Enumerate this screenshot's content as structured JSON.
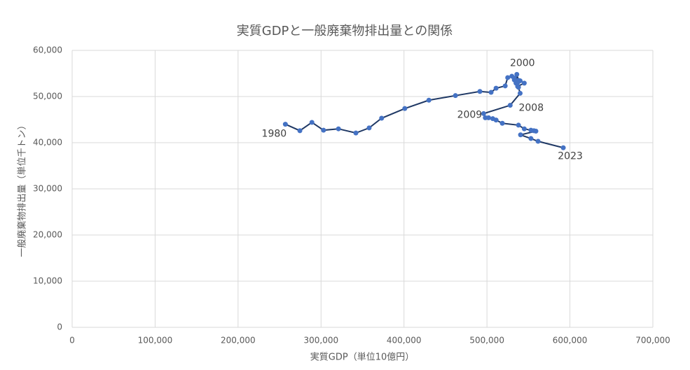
{
  "chart_data": {
    "type": "scatter-line",
    "title": "実質GDPと一般廃棄物排出量との関係",
    "x_label": "実質GDP（単位10億円）",
    "y_label": "一般廃棄物排出量（単位千トン）",
    "color": "#4472c4",
    "line_color": "#1f3864",
    "grid": true,
    "xlim": [
      0,
      700000
    ],
    "ylim": [
      0,
      60000
    ],
    "xticks": [
      0,
      {
        "value": 100000,
        "label": "100,000"
      },
      {
        "value": 200000,
        "label": "200,000"
      },
      {
        "value": 300000,
        "label": "300,000"
      },
      {
        "value": 400000,
        "label": "400,000"
      },
      {
        "value": 500000,
        "label": "500,000"
      },
      {
        "value": 600000,
        "label": "600,000"
      },
      {
        "value": 700000,
        "label": "700,000"
      }
    ],
    "yticks": [
      0,
      {
        "value": 10000,
        "label": "10,000"
      },
      {
        "value": 20000,
        "label": "20,000"
      },
      {
        "value": 30000,
        "label": "30,000"
      },
      {
        "value": 40000,
        "label": "40,000"
      },
      {
        "value": 50000,
        "label": "50,000"
      },
      {
        "value": 60000,
        "label": "60,000"
      }
    ],
    "x": [
      257000,
      274500,
      289000,
      303000,
      321000,
      342000,
      358000,
      373000,
      401000,
      430000,
      462000,
      491500,
      505000,
      511000,
      522000,
      525000,
      530000,
      533000,
      533000,
      535000,
      536000,
      538000,
      537000,
      540000,
      545000,
      537000,
      538000,
      540000,
      528000,
      496000,
      498000,
      502000,
      507000,
      511000,
      518500,
      538000,
      545000,
      553000,
      556500,
      559000,
      540500,
      553000,
      561600,
      592000
    ],
    "y": [
      44000,
      42600,
      44400,
      42700,
      43000,
      42100,
      43200,
      45300,
      47400,
      49200,
      50200,
      51100,
      50900,
      51800,
      52300,
      54100,
      54400,
      54000,
      53600,
      52900,
      54800,
      53500,
      53000,
      53400,
      52900,
      52200,
      52000,
      50700,
      48100,
      46300,
      45400,
      45400,
      45200,
      44900,
      44200,
      43800,
      43000,
      42700,
      42600,
      42500,
      41700,
      40900,
      40300,
      38900
    ],
    "point_labels": [
      "1980",
      null,
      null,
      null,
      null,
      null,
      null,
      null,
      null,
      null,
      null,
      null,
      null,
      null,
      null,
      null,
      null,
      null,
      null,
      null,
      "2000",
      null,
      null,
      null,
      null,
      null,
      null,
      null,
      "2008",
      "2009",
      null,
      null,
      null,
      null,
      null,
      null,
      null,
      null,
      null,
      null,
      null,
      null,
      null,
      "2023"
    ]
  }
}
